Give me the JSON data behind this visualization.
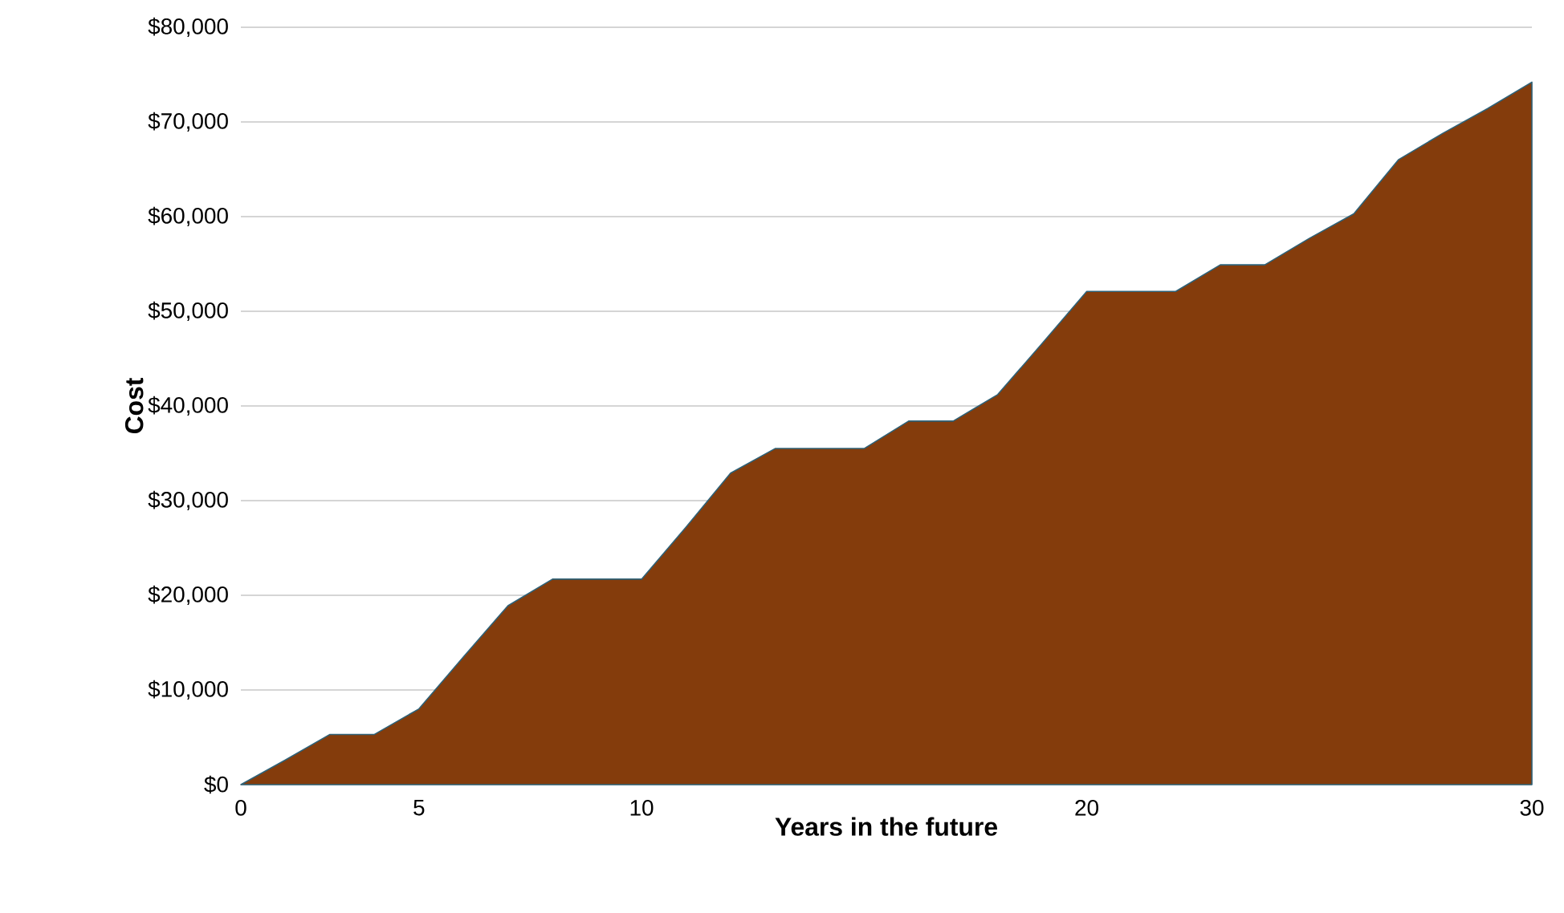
{
  "chart_data": {
    "type": "area",
    "xlabel": "Years in the future",
    "ylabel": "Cost",
    "categories": [
      "0",
      null,
      null,
      null,
      "5",
      null,
      null,
      null,
      null,
      "10",
      null,
      null,
      null,
      null,
      null,
      null,
      null,
      null,
      null,
      "20",
      null,
      null,
      null,
      null,
      null,
      null,
      null,
      null,
      null,
      "30"
    ],
    "values": [
      0,
      2600,
      5300,
      5300,
      8000,
      13500,
      18900,
      21700,
      21700,
      21700,
      27200,
      32900,
      35500,
      35500,
      35500,
      38400,
      38400,
      41200,
      46600,
      52100,
      52100,
      52100,
      54900,
      54900,
      57700,
      60300,
      66000,
      68800,
      71400,
      74200
    ],
    "color": "#843c0c",
    "ylim": [
      0,
      80000
    ],
    "yticks": [
      {
        "value": 0,
        "label": "$0"
      },
      {
        "value": 10000,
        "label": "$10,000"
      },
      {
        "value": 20000,
        "label": "$20,000"
      },
      {
        "value": 30000,
        "label": "$30,000"
      },
      {
        "value": 40000,
        "label": "$40,000"
      },
      {
        "value": 50000,
        "label": "$50,000"
      },
      {
        "value": 60000,
        "label": "$60,000"
      },
      {
        "value": 70000,
        "label": "$70,000"
      },
      {
        "value": 80000,
        "label": "$80,000"
      }
    ],
    "grid": "y"
  }
}
